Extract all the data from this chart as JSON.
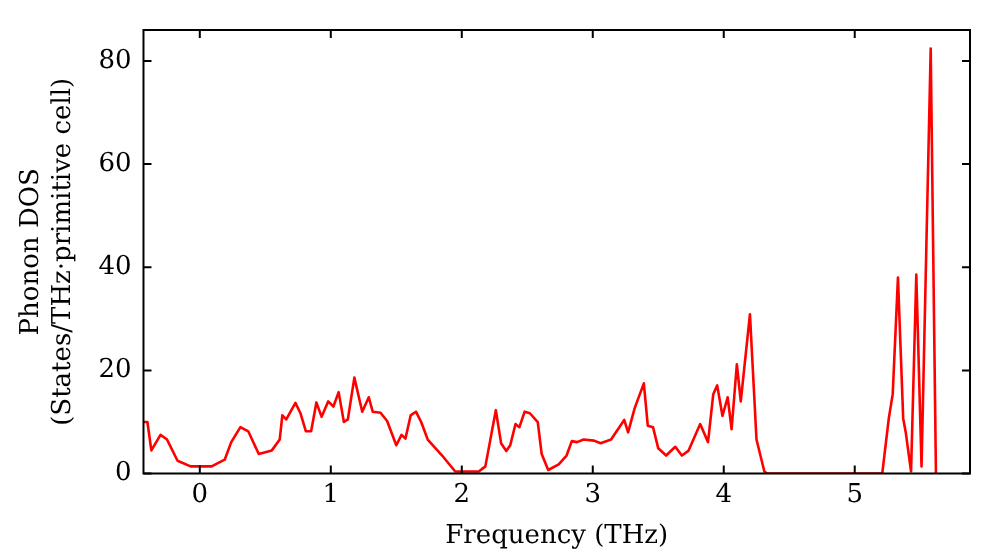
{
  "chart_data": {
    "type": "line",
    "xlabel": "Frequency (THz)",
    "ylabel": "Phonon DOS\n(States/THz·primitive cell)",
    "x": [
      -0.43,
      -0.4,
      -0.37,
      -0.3,
      -0.25,
      -0.17,
      -0.07,
      0.09,
      0.19,
      0.24,
      0.31,
      0.37,
      0.45,
      0.55,
      0.61,
      0.63,
      0.66,
      0.73,
      0.77,
      0.81,
      0.85,
      0.89,
      0.93,
      0.98,
      1.02,
      1.06,
      1.1,
      1.13,
      1.18,
      1.24,
      1.29,
      1.32,
      1.38,
      1.43,
      1.5,
      1.54,
      1.57,
      1.61,
      1.65,
      1.69,
      1.74,
      1.85,
      1.95,
      2.13,
      2.18,
      2.26,
      2.3,
      2.34,
      2.37,
      2.41,
      2.44,
      2.48,
      2.52,
      2.58,
      2.61,
      2.66,
      2.74,
      2.8,
      2.84,
      2.88,
      2.93,
      3.01,
      3.06,
      3.14,
      3.24,
      3.27,
      3.32,
      3.39,
      3.42,
      3.46,
      3.5,
      3.56,
      3.63,
      3.68,
      3.73,
      3.82,
      3.88,
      3.92,
      3.95,
      3.99,
      4.03,
      4.06,
      4.1,
      4.13,
      4.2,
      4.25,
      4.31,
      4.33,
      5.21,
      5.26,
      5.29,
      5.33,
      5.37,
      5.39,
      5.43,
      5.47,
      5.51,
      5.58,
      5.62
    ],
    "series": [
      {
        "color": "#ff0000",
        "values": [
          10,
          10,
          4.5,
          7.5,
          6.6,
          2.5,
          1.4,
          1.4,
          2.7,
          6.1,
          9,
          8.2,
          3.8,
          4.5,
          6.6,
          11.3,
          10.5,
          13.7,
          11.6,
          8.2,
          8.2,
          13.8,
          11,
          14,
          13,
          15.8,
          10,
          10.5,
          18.6,
          12,
          14.8,
          12,
          11.8,
          10.2,
          5.5,
          7.5,
          6.8,
          11.3,
          12,
          10,
          6.6,
          3.5,
          0.4,
          0.4,
          1.4,
          12.3,
          5.9,
          4.4,
          5.5,
          9.6,
          9,
          12,
          11.7,
          10,
          3.8,
          0.7,
          1.8,
          3.5,
          6.3,
          6.1,
          6.6,
          6.4,
          5.9,
          6.6,
          10.4,
          8,
          12.7,
          17.5,
          9.3,
          9,
          4.9,
          3.5,
          5.2,
          3.5,
          4.4,
          9.6,
          6.1,
          15.4,
          17.1,
          11.2,
          14.8,
          8.6,
          21.2,
          14,
          30.9,
          6.6,
          0.4,
          0,
          0,
          10.7,
          15.4,
          38,
          10.7,
          7.9,
          0.4,
          38.6,
          1.4,
          82.4,
          0
        ]
      }
    ],
    "xlim": [
      -0.43,
      5.88
    ],
    "xticks": [
      0,
      1,
      2,
      3,
      4,
      5
    ],
    "ylim": [
      0,
      86
    ],
    "yticks": [
      0,
      20,
      40,
      60,
      80
    ],
    "grid": false,
    "legend": false,
    "marker": "none",
    "line_style": "solid"
  }
}
